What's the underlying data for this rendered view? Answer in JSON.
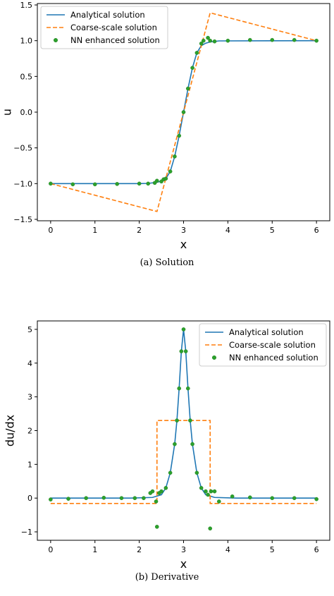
{
  "chart_data": [
    {
      "type": "line",
      "caption": "(a) Solution",
      "xlabel": "x",
      "ylabel": "u",
      "xlim": [
        -0.3,
        6.3
      ],
      "ylim": [
        -1.52,
        1.52
      ],
      "xticks": [
        0,
        1,
        2,
        3,
        4,
        5,
        6
      ],
      "yticks": [
        -1.5,
        -1.0,
        -0.5,
        0.0,
        0.5,
        1.0,
        1.5
      ],
      "ytick_labels": [
        "−1.5",
        "−1.0",
        "−0.5",
        "0.0",
        "0.5",
        "1.0",
        "1.5"
      ],
      "legend": "top-left",
      "grid": false,
      "series": [
        {
          "name": "Analytical solution",
          "style": "solid",
          "color": "#1f77b4",
          "x": [
            0,
            2.0,
            2.2,
            2.4,
            2.5,
            2.6,
            2.7,
            2.8,
            2.9,
            3.0,
            3.1,
            3.2,
            3.3,
            3.4,
            3.5,
            3.6,
            3.8,
            6
          ],
          "y": [
            -1.0,
            -1.0,
            -0.997,
            -0.982,
            -0.965,
            -0.93,
            -0.83,
            -0.62,
            -0.33,
            0.0,
            0.33,
            0.62,
            0.83,
            0.93,
            0.965,
            0.982,
            0.997,
            1.0
          ]
        },
        {
          "name": "Coarse-scale solution",
          "style": "dashed",
          "color": "#ff7f0e",
          "x": [
            0,
            2.4,
            3.6,
            6
          ],
          "y": [
            -1.0,
            -1.39,
            1.39,
            1.0
          ]
        },
        {
          "name": "NN enhanced solution",
          "style": "markers",
          "color": "#2ca02c",
          "x": [
            0,
            0.5,
            1.0,
            1.5,
            2.0,
            2.2,
            2.35,
            2.4,
            2.5,
            2.55,
            2.6,
            2.7,
            2.8,
            2.9,
            3.0,
            3.1,
            3.2,
            3.3,
            3.4,
            3.45,
            3.55,
            3.6,
            3.7,
            4.0,
            4.5,
            5.0,
            5.5,
            6.0
          ],
          "y": [
            -1.0,
            -1.01,
            -1.01,
            -1.005,
            -1.0,
            -1.0,
            -0.99,
            -0.96,
            -0.97,
            -0.94,
            -0.93,
            -0.83,
            -0.62,
            -0.33,
            0.0,
            0.33,
            0.62,
            0.83,
            0.96,
            1.0,
            1.04,
            1.0,
            0.99,
            1.0,
            1.01,
            1.01,
            1.01,
            1.0
          ]
        }
      ]
    },
    {
      "type": "line",
      "caption": "(b) Derivative",
      "xlabel": "x",
      "ylabel": "du/dx",
      "xlim": [
        -0.3,
        6.3
      ],
      "ylim": [
        -1.25,
        5.25
      ],
      "xticks": [
        0,
        1,
        2,
        3,
        4,
        5,
        6
      ],
      "yticks": [
        -1,
        0,
        1,
        2,
        3,
        4,
        5
      ],
      "ytick_labels": [
        "−1",
        "0",
        "1",
        "2",
        "3",
        "4",
        "5"
      ],
      "legend": "top-right",
      "grid": false,
      "series": [
        {
          "name": "Analytical solution",
          "style": "solid",
          "color": "#1f77b4",
          "x": [
            0,
            1.8,
            2.3,
            2.5,
            2.6,
            2.7,
            2.8,
            2.85,
            2.9,
            2.95,
            3.0,
            3.05,
            3.1,
            3.15,
            3.2,
            3.3,
            3.4,
            3.5,
            3.7,
            4.2,
            6
          ],
          "y": [
            0,
            0,
            0.02,
            0.1,
            0.3,
            0.75,
            1.6,
            2.3,
            3.25,
            4.35,
            5.0,
            4.35,
            3.25,
            2.3,
            1.6,
            0.75,
            0.3,
            0.1,
            0.02,
            0,
            0
          ]
        },
        {
          "name": "Coarse-scale solution",
          "style": "dashed",
          "color": "#ff7f0e",
          "x": [
            0,
            2.4,
            2.4,
            3.6,
            3.6,
            6
          ],
          "y": [
            -0.16,
            -0.16,
            2.3,
            2.3,
            -0.16,
            -0.16
          ]
        },
        {
          "name": "NN enhanced solution",
          "style": "markers",
          "color": "#2ca02c",
          "x": [
            0,
            0.4,
            0.8,
            1.2,
            1.6,
            1.9,
            2.1,
            2.25,
            2.3,
            2.38,
            2.4,
            2.45,
            2.5,
            2.6,
            2.7,
            2.8,
            2.85,
            2.9,
            2.95,
            3.0,
            3.05,
            3.1,
            3.15,
            3.2,
            3.3,
            3.4,
            3.5,
            3.55,
            3.6,
            3.62,
            3.7,
            3.8,
            4.1,
            4.5,
            5.0,
            5.5,
            6.0
          ],
          "y": [
            -0.04,
            -0.02,
            0.0,
            0.01,
            0.0,
            0.0,
            0.0,
            0.15,
            0.2,
            -0.1,
            -0.85,
            0.15,
            0.2,
            0.3,
            0.75,
            1.6,
            2.3,
            3.25,
            4.35,
            5.0,
            4.35,
            3.25,
            2.3,
            1.6,
            0.75,
            0.3,
            0.2,
            0.1,
            -0.9,
            0.2,
            0.2,
            -0.1,
            0.05,
            0.02,
            0.0,
            0.0,
            -0.03
          ]
        }
      ]
    }
  ]
}
